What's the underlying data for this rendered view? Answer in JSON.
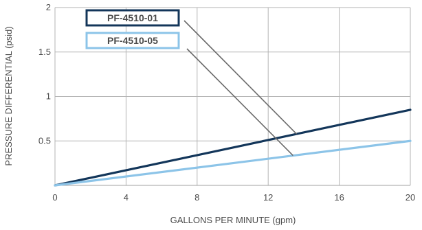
{
  "chart_data": {
    "type": "line",
    "title": "",
    "xlabel": "GALLONS PER MINUTE (gpm)",
    "ylabel": "PRESSURE DIFFERENTIAL (psid)",
    "xlim": [
      0,
      20
    ],
    "ylim": [
      0,
      2
    ],
    "x_ticks": [
      0,
      4,
      8,
      12,
      16,
      20
    ],
    "x_tick_labels": [
      "0",
      "4",
      "8",
      "12",
      "16",
      "20"
    ],
    "y_ticks": [
      0.5,
      1,
      1.5,
      2
    ],
    "y_tick_labels": [
      "0.5",
      "1",
      "1.5",
      "2"
    ],
    "grid": true,
    "legend_placement": "top-left",
    "series": [
      {
        "name": "PF-4510-01",
        "color": "#13365a",
        "x": [
          0,
          20
        ],
        "y": [
          0,
          0.85
        ]
      },
      {
        "name": "PF-4510-05",
        "color": "#8cc4e8",
        "x": [
          0,
          20
        ],
        "y": [
          0,
          0.5
        ]
      }
    ]
  }
}
